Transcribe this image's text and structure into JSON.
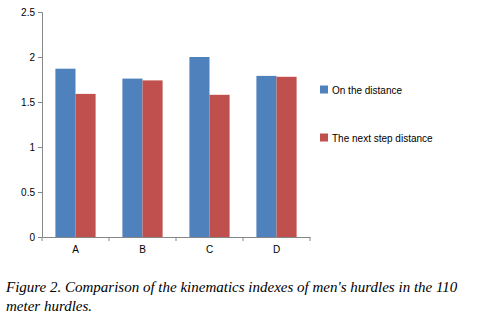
{
  "chart_data": {
    "type": "bar",
    "title": "Figure 2. Comparison of the kinematics indexes of men's hurdles in the 110 meter hurdles.",
    "categories": [
      "A",
      "B",
      "C",
      "D"
    ],
    "series": [
      {
        "name": "On the distance",
        "color": "#4f81bd",
        "values": [
          1.87,
          1.76,
          2.0,
          1.79
        ]
      },
      {
        "name": "The next step distance",
        "color": "#c0504d",
        "values": [
          1.59,
          1.74,
          1.58,
          1.78
        ]
      }
    ],
    "ylim": [
      0,
      2.5
    ],
    "yticks": [
      0,
      0.5,
      1,
      1.5,
      2,
      2.5
    ],
    "grid": false,
    "legend": "right"
  }
}
